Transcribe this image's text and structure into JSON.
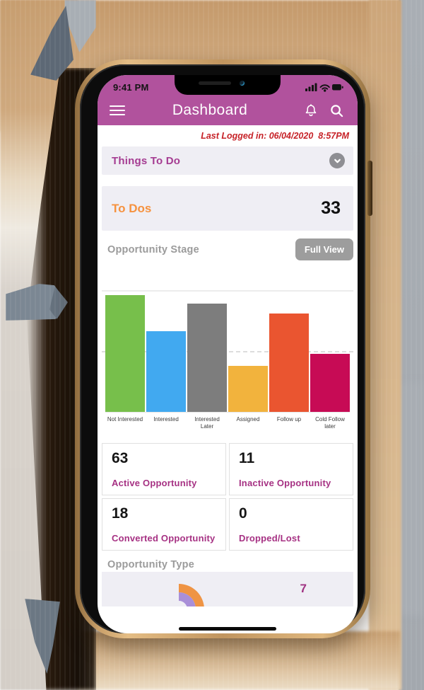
{
  "status_bar": {
    "time": "9:41 PM",
    "icons": [
      "signal-icon",
      "wifi-icon",
      "battery-icon"
    ]
  },
  "header": {
    "title": "Dashboard",
    "icons": [
      "hamburger-icon",
      "bell-icon",
      "search-icon"
    ],
    "bg_color": "#b1529d"
  },
  "last_logged": "Last Logged in: 06/04/2020  8:57PM",
  "things_to_do": {
    "label": "Things To Do",
    "chevron_icon": "chevron-down-icon"
  },
  "todos": {
    "label": "To Dos",
    "count": "33"
  },
  "opportunity_stage": {
    "heading": "Opportunity Stage",
    "button_label": "Full View"
  },
  "chart_data": {
    "type": "bar",
    "title": "Opportunity Stage",
    "categories": [
      "Not Interested",
      "Interested",
      "Interested Later",
      "Assigned",
      "Follow up",
      "Cold Follow later"
    ],
    "values": [
      97,
      67,
      90,
      38,
      82,
      48
    ],
    "ylim": [
      0,
      100
    ],
    "note": "no numeric axis labels shown; values estimated as % of plot height",
    "colors": [
      "#77bf4b",
      "#41a9f0",
      "#7d7d7d",
      "#f2b33d",
      "#ea5530",
      "#c70b55"
    ],
    "gridlines": {
      "top_solid": true,
      "dashed_at_pct_from_top": 49
    },
    "legend": "none",
    "xlabel": "",
    "ylabel": ""
  },
  "stats": {
    "cells": [
      {
        "value": "63",
        "label": "Active Opportunity"
      },
      {
        "value": "11",
        "label": "Inactive Opportunity"
      },
      {
        "value": "18",
        "label": "Converted Opportunity"
      },
      {
        "value": "0",
        "label": "Dropped/Lost"
      }
    ]
  },
  "opportunity_type": {
    "heading": "Opportunity Type",
    "value": "7",
    "arc_colors": {
      "outer": "#ef9444",
      "inner": "#a98fd8"
    }
  },
  "colors": {
    "accent_magenta": "#b1529d",
    "label_magenta": "#a63183",
    "alert_red": "#c62127",
    "todos_orange": "#f6923f",
    "heading_gray": "#9b9b9b",
    "panel_bg": "#efeef4",
    "frame_gold": "#c1955f",
    "bg_tan": "#cda67a",
    "bg_gray": "#a8adb3",
    "decor_arrow_gray": "#6b7783"
  }
}
